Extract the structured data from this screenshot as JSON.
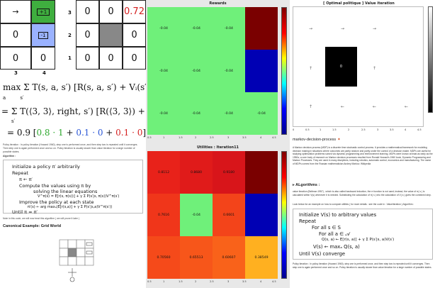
{
  "grid_left": {
    "cells": [
      {
        "text": "0",
        "bg": "#ffffff"
      },
      {
        "text": "0",
        "bg": "#3fae3f"
      },
      {
        "text": "",
        "bg": "#ffffff"
      },
      {
        "text": "0",
        "bg": "#9ab2ff"
      },
      {
        "text": "0",
        "bg": "#ffffff"
      },
      {
        "text": "0",
        "bg": "#ffffff"
      },
      {
        "text": "0",
        "bg": "#ffffff"
      }
    ],
    "row_labels": [
      "3",
      "2",
      "1"
    ],
    "col_labels": [
      "3",
      "4"
    ],
    "goal_badge": "+1",
    "pit_badge": "-1"
  },
  "grid_right": {
    "cells": [
      {
        "text": "0",
        "bg": "#ffffff"
      },
      {
        "text": "0",
        "bg": "#ffffff"
      },
      {
        "text": "0.72",
        "bg": "#ffffff",
        "color": "#d42020"
      },
      {
        "text": "0",
        "bg": "#ffffff"
      },
      {
        "text": "",
        "bg": "#888888"
      },
      {
        "text": "0",
        "bg": "#ffffff"
      },
      {
        "text": "0",
        "bg": "#ffffff"
      },
      {
        "text": "0",
        "bg": "#ffffff"
      },
      {
        "text": "0",
        "bg": "#ffffff"
      }
    ]
  },
  "equations": {
    "line1": "max Σ T(s, a, s′) [R(s, a, s′) + Vᵢ(s′)",
    "line1_sub_a": "a",
    "line1_sub_s": "s′",
    "line2": "= Σ T(⟨3, 3⟩, right, s′) [R(⟨3, 3⟩) +",
    "line2_sub": "s′",
    "line3_prefix": "= 0.9 [",
    "line3_green": "0.8 · 1",
    "line3_mid1": " + ",
    "line3_blue": "0.1 · 0",
    "line3_mid2": " + ",
    "line3_red": "0.1 · 0",
    "line3_suffix": "]"
  },
  "left_notes": {
    "para1": "Policy iteration : In policy iteration (Howard 1960), step one is performed once, and then step two is repeated until it converges. Then step one is again performed once and so on. Policy iteration is usually slower than value iteration for a large number of possible states.",
    "algorithm_label": "Algorithm :",
    "algo_lines": [
      "Initialize a policy π′ arbitrarily",
      "Repeat",
      "π ← π′",
      "Compute the values using π by",
      "solving the linear equations",
      "V^π(s) = E[r(s, π(s))] + γ Σ P(s′|s, π(s))V^π(s′)",
      "Improve the policy at each state",
      "π′(s) ← arg maxₐ(E[r(s,a)] + γ Σ P(s′|s,a)V^π(s′))",
      "Until π = π′"
    ],
    "para2": "Note in this code, we will now treat this algorithm ( we will prune it later )",
    "section_title": "Canonical Example: Grid World"
  },
  "rewards_plot": {
    "title": "Rewards",
    "cell_label": "-0.04",
    "dark_red": "#7a0000",
    "blue": "#0000b4",
    "green": "#6ff07a",
    "x_ticks": [
      "0.5",
      "1",
      "1.5",
      "2",
      "2.5",
      "3",
      "3.5",
      "4",
      "4.5"
    ],
    "y_ticks": [
      "0.5",
      "1",
      "1.5",
      "2",
      "2.5",
      "3",
      "3.5"
    ]
  },
  "policy_plot": {
    "title": "[ Optimal politique ] Value iteration",
    "center_label": "0",
    "x_ticks": [
      "0",
      "0.5",
      "1",
      "1.5",
      "2",
      "2.5",
      "3",
      "3.5",
      "4",
      "4.5"
    ],
    "y_ticks": [
      "0.5",
      "1",
      "1.5",
      "2",
      "2.5",
      "3",
      "3.5"
    ],
    "arrows": [
      "→",
      "→",
      "→",
      "",
      "↑",
      "",
      "↑",
      "",
      "↑",
      "←",
      "←",
      "←"
    ]
  },
  "utilities_plot": {
    "title": "Utilities : Iteration11",
    "values": [
      [
        "0.8112",
        "0.8680",
        "0.9180",
        ""
      ],
      [
        "0.7616",
        "-0.04",
        "0.6601",
        ""
      ],
      [
        "0.70560",
        "0.65513",
        "0.60607",
        "0.38549"
      ]
    ],
    "x_ticks": [
      "0.5",
      "1",
      "1.5",
      "2",
      "2.5",
      "3",
      "3.5",
      "4",
      "4.5"
    ],
    "y_ticks": [
      "0.5",
      "1",
      "1.5",
      "2",
      "2.5",
      "3",
      "3.5"
    ]
  },
  "right_page": {
    "title": "markov-decision-process",
    "intro": "A Markov decision process (MDP) is a discrete time stochastic control process. It provides a mathematical framework for modeling decision making in situations where outcomes are partly random and partly under the control of a decision maker. MDPs are useful for studying optimization problems solved via dynamic programming and reinforcement learning. MDPs were known at least as early as the 1950s; a core body of research on Markov decision processes resulted from Ronald Howard's 1960 book, Dynamic Programming and Markov Processes. They are used in many disciplines, including robotics, automatic control, economics and manufacturing. The name of MDPs comes from the Russian mathematician Andrey Markov. Wikipedia",
    "algorithms_heading": "ALgorithms :",
    "vi_text": "value iteration (Bellman 1957) , which is also called backward induction, the π function is not used; instead, the value of π( s ) is calculated within V(s) whenever it is needed. Substituting the calculation of π( s ) into the calculation of V( s ) gives the combined step.",
    "vi_text2": "Look below for an example on how to compute utilities ( for more details : see the code in : ValueIteration ) Algorithm :",
    "algo_lines": [
      "Initialize V(s) to arbitrary values",
      "Repeat",
      "For all s ∈ S",
      "For all a ∈ 𝒜",
      "Q(s, a) ← E[r(s, a)] + γ Σ P(s′|s, a)V(s′)",
      "V(s) ← maxₐ Q(s, a)",
      "Until V(s) converge"
    ],
    "pi_text": "Policy iteration : In policy iteration (Howard 1960), step one is performed once, and then step two is repeated until it converges. Then step one is again performed once and so on. Policy iteration is usually slower than value iteration for a large number of possible states."
  }
}
